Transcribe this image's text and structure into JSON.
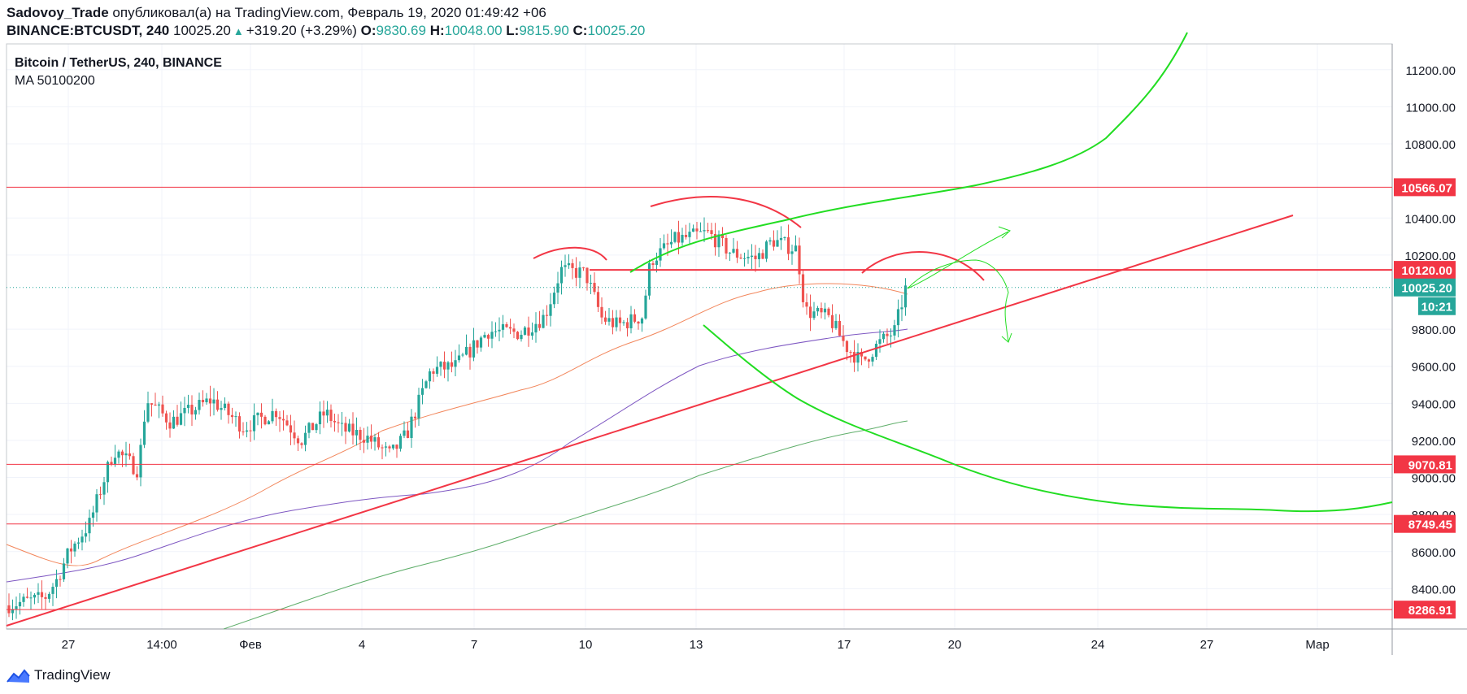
{
  "header": {
    "author": "Sadovoy_Trade",
    "published_text": "опубликовал(а) на TradingView.com, Февраль 19, 2020 01:49:42 +06",
    "symbol": "BINANCE:BTCUSDT, 240",
    "last": "10025.20",
    "change": "+319.20 (+3.29%)",
    "o_label": "O:",
    "o_val": "9830.69",
    "h_label": "H:",
    "h_val": "10048.00",
    "l_label": "L:",
    "l_val": "9815.90",
    "c_label": "C:",
    "c_val": "10025.20"
  },
  "legend": {
    "title": "Bitcoin / TetherUS, 240, BINANCE",
    "indicator": "MA 50100200"
  },
  "axis": {
    "y_ticks": [
      "11200.00",
      "11000.00",
      "10800.00",
      "10400.00",
      "10200.00",
      "9800.00",
      "9600.00",
      "9400.00",
      "9200.00",
      "9000.00",
      "8800.00",
      "8600.00",
      "8400.00"
    ],
    "y_tick_values": [
      11200,
      11000,
      10800,
      10400,
      10200,
      9800,
      9600,
      9400,
      9200,
      9000,
      8800,
      8600,
      8400
    ],
    "x_ticks": [
      "27",
      "14:00",
      "Фев",
      "4",
      "7",
      "10",
      "13",
      "17",
      "20",
      "24",
      "27",
      "Мар"
    ]
  },
  "price_labels": [
    {
      "text": "10566.07",
      "value": 10566.07,
      "color": "#f23645"
    },
    {
      "text": "10120.00",
      "value": 10120.0,
      "color": "#f23645"
    },
    {
      "text": "10025.20",
      "value": 10025.2,
      "color": "#26a69a"
    },
    {
      "text": "9070.81",
      "value": 9070.81,
      "color": "#f23645"
    },
    {
      "text": "8749.45",
      "value": 8749.45,
      "color": "#f23645"
    },
    {
      "text": "8286.91",
      "value": 8286.91,
      "color": "#f23645"
    }
  ],
  "countdown": "10:21",
  "footer": {
    "brand": "TradingView"
  },
  "colors": {
    "up": "#26a69a",
    "down": "#ef5350",
    "level": "#f23645",
    "ma50": "#f2865b",
    "ma100": "#7e57c2",
    "ma200": "#5fae6a",
    "drawing": "#22dd22"
  }
}
